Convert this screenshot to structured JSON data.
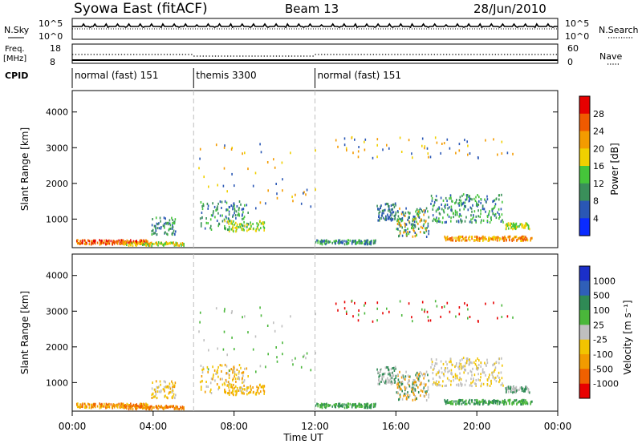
{
  "header": {
    "station": "Syowa East (fitACF)",
    "beam": "Beam 13",
    "date": "28/Jun/2010"
  },
  "colors": {
    "power_scale": [
      "#0a2bff",
      "#2a57b5",
      "#3a8f5a",
      "#45c53a",
      "#f0d000",
      "#f39b00",
      "#f05a00",
      "#e60000"
    ],
    "velocity_scale": [
      "#1b2fc9",
      "#2f5fb8",
      "#2f8a55",
      "#4ab73a",
      "#bfbfbf",
      "#f2c400",
      "#f29b00",
      "#f06000",
      "#e80000"
    ],
    "trace": "#000000",
    "dashed": "#bdbdbd"
  },
  "chart_data": [
    {
      "type": "line",
      "panel": "noise",
      "labels_left": [
        "N.Sky",
        "10^5",
        "10^0"
      ],
      "labels_right": [
        "10^5",
        "10^0",
        "N.Search"
      ],
      "ylim_log": [
        0,
        5
      ]
    },
    {
      "type": "line",
      "panel": "frequency",
      "labels_left": [
        "Freq.",
        "[MHz]",
        "18",
        "8"
      ],
      "labels_right": [
        "60",
        "0",
        "Nave"
      ],
      "ylim_left": [
        8,
        18
      ],
      "ylim_right": [
        0,
        60
      ]
    },
    {
      "type": "table",
      "panel": "cpid",
      "title": "CPID",
      "x_unit": "hours UT",
      "segments": [
        {
          "label": "normal (fast) 151",
          "start": 0,
          "end": 6
        },
        {
          "label": "themis 3300",
          "start": 6,
          "end": 12
        },
        {
          "label": "normal (fast) 151",
          "start": 12,
          "end": 24
        }
      ]
    },
    {
      "type": "heatmap",
      "panel": "power",
      "ylabel": "Slant Range [km]",
      "colorbar_label": "Power [dB]",
      "colorbar_ticks": [
        "4",
        "8",
        "12",
        "16",
        "20",
        "24",
        "28"
      ],
      "yticks": [
        "1000",
        "2000",
        "3000",
        "4000"
      ],
      "ylim": [
        200,
        4600
      ],
      "xlim": [
        0,
        24
      ]
    },
    {
      "type": "heatmap",
      "panel": "velocity",
      "ylabel": "Slant Range [km]",
      "colorbar_label": "Velocity [m s⁻¹]",
      "colorbar_ticks": [
        "1000",
        "500",
        "100",
        "25",
        "-25",
        "-100",
        "-500",
        "-1000"
      ],
      "yticks": [
        "1000",
        "2000",
        "3000",
        "4000"
      ],
      "ylim": [
        200,
        4600
      ],
      "xlim": [
        0,
        24
      ],
      "xticks": [
        "00:00",
        "04:00",
        "08:00",
        "12:00",
        "16:00",
        "20:00",
        "00:00"
      ],
      "xlabel": "Time UT"
    }
  ]
}
